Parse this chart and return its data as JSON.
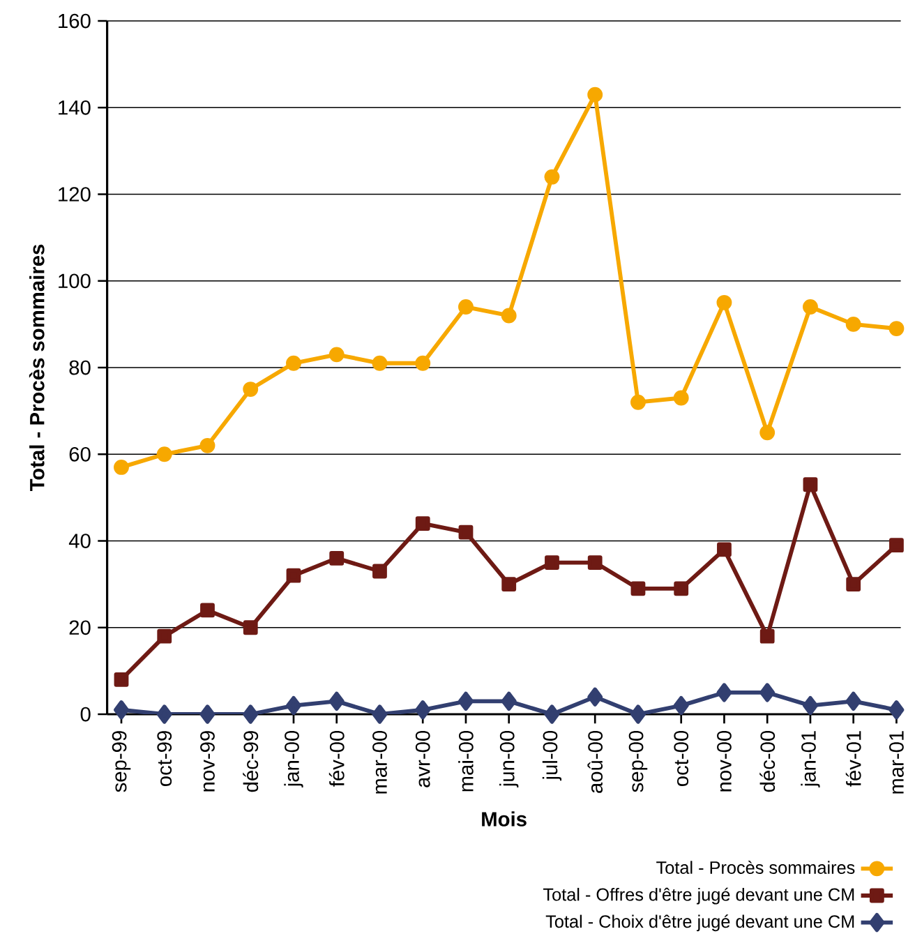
{
  "chart_data": {
    "type": "line",
    "xlabel": "Mois",
    "ylabel": "Total - Procès sommaires",
    "categories": [
      "sep-99",
      "oct-99",
      "nov-99",
      "déc-99",
      "jan-00",
      "fév-00",
      "mar-00",
      "avr-00",
      "mai-00",
      "jun-00",
      "jul-00",
      "aoû-00",
      "sep-00",
      "oct-00",
      "nov-00",
      "déc-00",
      "jan-01",
      "fév-01",
      "mar-01"
    ],
    "series": [
      {
        "name": "Total - Procès sommaires",
        "color": "#f7a800",
        "marker": "circle",
        "values": [
          57,
          60,
          62,
          75,
          81,
          83,
          81,
          81,
          94,
          92,
          124,
          143,
          72,
          73,
          95,
          65,
          94,
          90,
          89
        ]
      },
      {
        "name": "Total - Offres d'être jugé devant une CM",
        "color": "#6e1a14",
        "marker": "square",
        "values": [
          8,
          18,
          24,
          20,
          32,
          36,
          33,
          44,
          42,
          30,
          35,
          35,
          29,
          29,
          38,
          18,
          53,
          30,
          39
        ]
      },
      {
        "name": "Total - Choix d'être jugé devant une CM",
        "color": "#323f70",
        "marker": "diamond",
        "values": [
          1,
          0,
          0,
          0,
          2,
          3,
          0,
          1,
          3,
          3,
          0,
          4,
          0,
          2,
          5,
          5,
          2,
          3,
          1
        ]
      }
    ],
    "ylim": [
      0,
      160
    ],
    "yticks": [
      0,
      20,
      40,
      60,
      80,
      100,
      120,
      140,
      160
    ],
    "grid": "y",
    "legend": "bottom right",
    "line_style": "solid"
  }
}
